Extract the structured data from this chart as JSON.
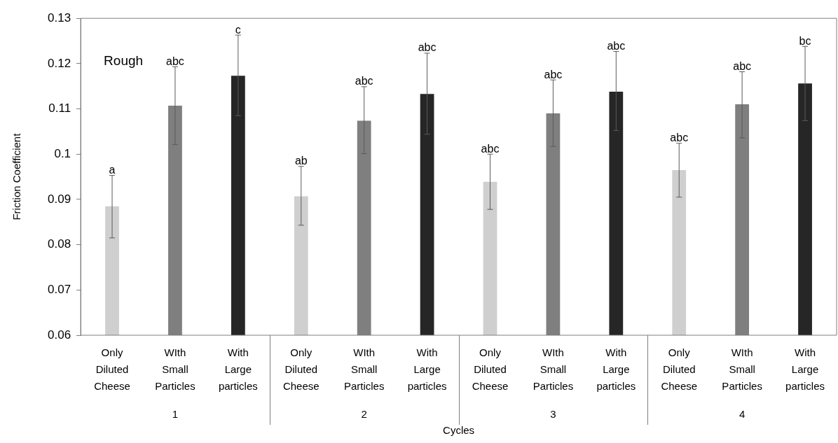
{
  "chart_data": {
    "type": "bar",
    "xlabel": "Cycles",
    "ylabel": "Friction Coefficient",
    "categories": [
      "1",
      "2",
      "3",
      "4"
    ],
    "series": [
      {
        "name": "Only Diluted Cheese",
        "color": "#d0cfd0",
        "values": [
          0.0885,
          0.0907,
          0.0939,
          0.0965
        ],
        "errors": [
          [
            0.0815,
            0.0953
          ],
          [
            0.0843,
            0.0973
          ],
          [
            0.0878,
            0.1
          ],
          [
            0.0905,
            0.1024
          ]
        ]
      },
      {
        "name": "WIth Small Particles",
        "color": "#7f7f7f",
        "values": [
          0.1107,
          0.1074,
          0.109,
          0.111
        ],
        "errors": [
          [
            0.1021,
            0.1193
          ],
          [
            0.1001,
            0.1149
          ],
          [
            0.1017,
            0.1164
          ],
          [
            0.1036,
            0.1182
          ]
        ]
      },
      {
        "name": "With Large particles",
        "color": "#262626",
        "values": [
          0.1173,
          0.1133,
          0.1138,
          0.1156
        ],
        "errors": [
          [
            0.1085,
            0.1263
          ],
          [
            0.1044,
            0.1223
          ],
          [
            0.1052,
            0.1227
          ],
          [
            0.1074,
            0.1238
          ]
        ]
      }
    ],
    "ylim": [
      0.06,
      0.13
    ],
    "yticks": [
      0.06,
      0.07,
      0.08,
      0.09,
      0.1,
      0.11,
      0.12,
      0.13
    ],
    "grid": false,
    "legend": false,
    "annotations": [
      "Rough",
      "a",
      "abc",
      "c",
      "ab",
      "abc",
      "abc",
      "abc",
      "abc",
      "abc",
      "abc",
      "abc",
      "bc"
    ]
  }
}
